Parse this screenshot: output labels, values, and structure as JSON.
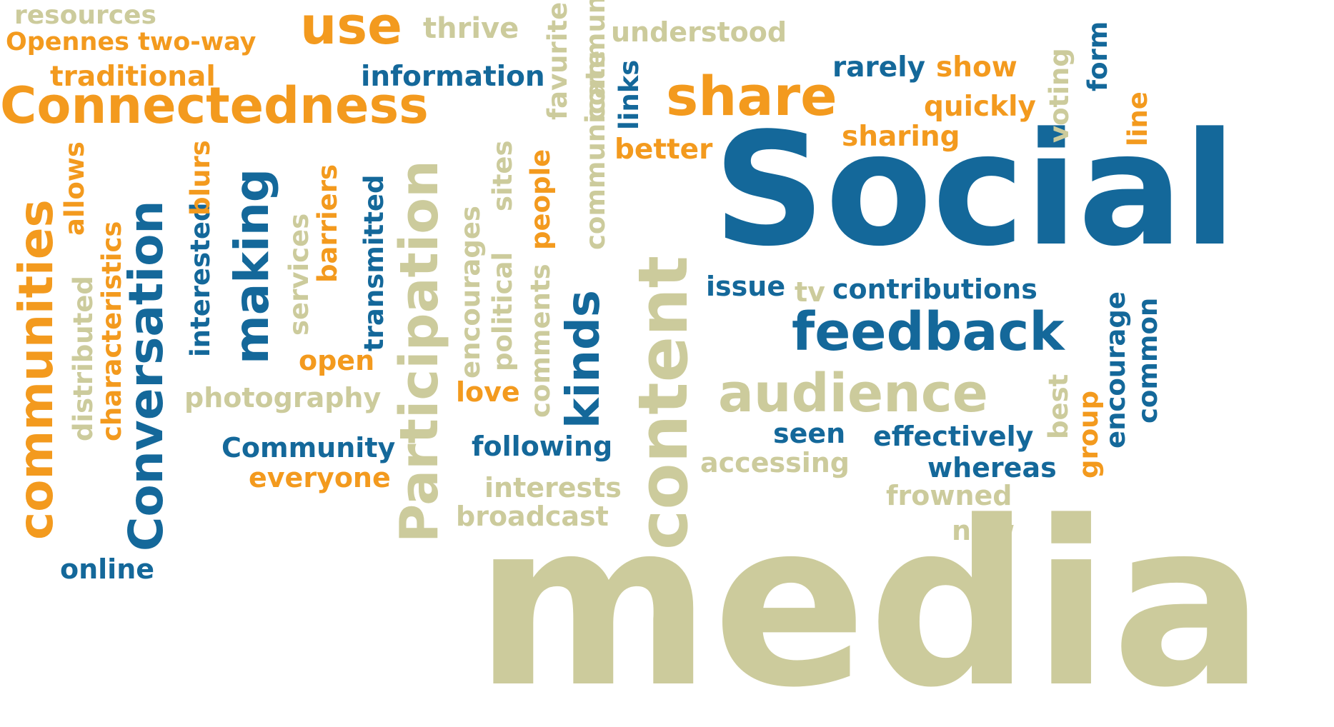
{
  "palette": {
    "blue": "#14689a",
    "orange": "#f39a1e",
    "tan": "#cccb9c",
    "background": "#ffffff"
  },
  "words": {
    "resources": "resources",
    "opennes_two_way": "Opennes two-way",
    "use": "use",
    "thrive": "thrive",
    "traditional": "traditional",
    "information": "information",
    "understood": "understood",
    "connectedness": "Connectedness",
    "share": "share",
    "rarely": "rarely",
    "show": "show",
    "quickly": "quickly",
    "sharing": "sharing",
    "better": "better",
    "social": "Social",
    "communities": "communities",
    "allows": "allows",
    "characteristics": "characteristics",
    "distributed": "distributed",
    "conversation": "Conversation",
    "interested": "interested",
    "blurs": "blurs",
    "making": "making",
    "services": "services",
    "barriers": "barriers",
    "transmitted": "transmitted",
    "participation": "Participation",
    "encourages": "encourages",
    "political": "political",
    "sites": "sites",
    "comments": "comments",
    "people": "people",
    "kinds": "kinds",
    "favurite": "favurite",
    "communicate_top": "communicate",
    "links": "links",
    "communicate_mid": "communicate",
    "content": "content",
    "voting": "voting",
    "form": "form",
    "line": "line",
    "issue": "issue",
    "tv": "tv",
    "contributions": "contributions",
    "feedback": "feedback",
    "audience": "audience",
    "best": "best",
    "group": "group",
    "encourage": "encourage",
    "common": "common",
    "open": "open",
    "photography": "photography",
    "love": "love",
    "community": "Community",
    "everyone": "everyone",
    "following": "following",
    "interests": "interests",
    "broadcast": "broadcast",
    "seen": "seen",
    "effectively": "effectively",
    "accessing": "accessing",
    "whereas": "whereas",
    "frowned": "frowned",
    "new": "new",
    "online": "online",
    "media": "media"
  }
}
